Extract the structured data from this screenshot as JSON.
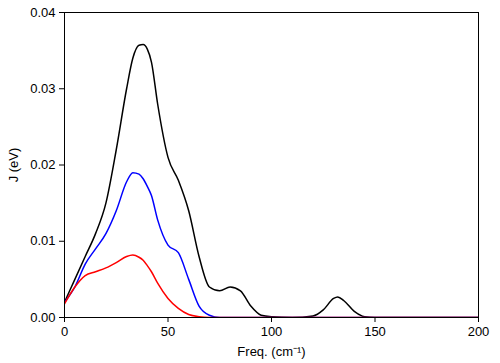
{
  "chart_data": {
    "type": "line",
    "x_label": "Freq. (cm⁻¹)",
    "y_label": "J (eV)",
    "x": [
      0,
      5,
      10,
      15,
      20,
      25,
      30,
      33,
      36,
      38,
      40,
      42,
      45,
      50,
      55,
      60,
      65,
      70,
      75,
      80,
      85,
      90,
      95,
      100,
      110,
      120,
      125,
      130,
      132,
      135,
      140,
      145,
      150,
      175,
      200
    ],
    "series": [
      {
        "color": "#000000",
        "values": [
          0.002,
          0.005,
          0.008,
          0.011,
          0.015,
          0.022,
          0.03,
          0.034,
          0.0357,
          0.0358,
          0.0352,
          0.0335,
          0.028,
          0.021,
          0.018,
          0.014,
          0.008,
          0.004,
          0.0035,
          0.004,
          0.0035,
          0.0015,
          0.0003,
          0.0001,
          0,
          0.0002,
          0.001,
          0.0025,
          0.0027,
          0.0022,
          0.0008,
          0.0001,
          0,
          0,
          0
        ]
      },
      {
        "color": "#0000ff",
        "values": [
          0.002,
          0.004,
          0.007,
          0.009,
          0.011,
          0.014,
          0.0178,
          0.019,
          0.0188,
          0.0182,
          0.0172,
          0.016,
          0.0128,
          0.0095,
          0.0085,
          0.005,
          0.0015,
          0.0003,
          0,
          0,
          0,
          0,
          0,
          0,
          0,
          0,
          0,
          0,
          0,
          0,
          0,
          0,
          0,
          0,
          0
        ]
      },
      {
        "color": "#ff0000",
        "values": [
          0.0018,
          0.004,
          0.0055,
          0.006,
          0.0065,
          0.0072,
          0.008,
          0.0082,
          0.0079,
          0.0075,
          0.0068,
          0.006,
          0.0045,
          0.0025,
          0.0012,
          0.0004,
          0.0001,
          0,
          0,
          0,
          0,
          0,
          0,
          0,
          0,
          0,
          0,
          0,
          0,
          0,
          0,
          0,
          0,
          0,
          0
        ]
      }
    ],
    "xlim": [
      0,
      200
    ],
    "xticks": [
      0,
      50,
      100,
      150,
      200
    ],
    "ylim": [
      0,
      0.04
    ],
    "yticks": [
      {
        "value": 0,
        "label": "0.00"
      },
      {
        "value": 0.01,
        "label": "0.01"
      },
      {
        "value": 0.02,
        "label": "0.02"
      },
      {
        "value": 0.03,
        "label": "0.03"
      },
      {
        "value": 0.04,
        "label": "0.04"
      }
    ],
    "grid": false
  }
}
